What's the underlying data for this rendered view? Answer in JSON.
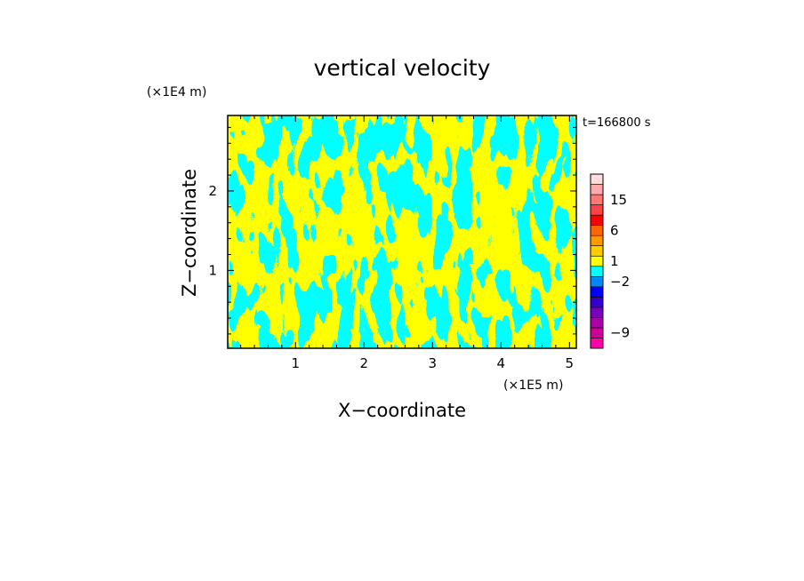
{
  "chart_data": {
    "type": "heatmap",
    "title": "vertical velocity",
    "xlabel": "X−coordinate",
    "ylabel": "Z−coordinate",
    "x_unit": "(×1E5 m)",
    "y_unit": "(×1E4 m)",
    "time_label": "t=166800 s",
    "xlim": [
      0.01,
      5.1
    ],
    "ylim": [
      0.02,
      2.95
    ],
    "x_ticks": [
      {
        "value": 1,
        "label": "1"
      },
      {
        "value": 2,
        "label": "2"
      },
      {
        "value": 3,
        "label": "3"
      },
      {
        "value": 4,
        "label": "4"
      },
      {
        "value": 5,
        "label": "5"
      }
    ],
    "y_ticks": [
      {
        "value": 1,
        "label": "1"
      },
      {
        "value": 2,
        "label": "2"
      }
    ],
    "field_colors": {
      "positive": "#ffff00",
      "negative": "#00ffff"
    },
    "colorbar": {
      "levels": [
        {
          "color": "#ff00aa"
        },
        {
          "color": "#cc0099"
        },
        {
          "color": "#aa00aa"
        },
        {
          "color": "#7700bb"
        },
        {
          "color": "#3300cc"
        },
        {
          "color": "#0000ff"
        },
        {
          "color": "#0088ff"
        },
        {
          "color": "#00ffff"
        },
        {
          "color": "#ffff00"
        },
        {
          "color": "#ffcc00"
        },
        {
          "color": "#ff9900"
        },
        {
          "color": "#ff6600"
        },
        {
          "color": "#ff0000"
        },
        {
          "color": "#ff4444"
        },
        {
          "color": "#ff7777"
        },
        {
          "color": "#ffaaaa"
        },
        {
          "color": "#ffdddd"
        }
      ],
      "labels": [
        {
          "label": "15",
          "level": 14.5
        },
        {
          "label": "6",
          "level": 11.5
        },
        {
          "label": "1",
          "level": 8.5
        },
        {
          "label": "−2",
          "level": 6.5
        },
        {
          "label": "−9",
          "level": 1.5
        }
      ]
    }
  }
}
